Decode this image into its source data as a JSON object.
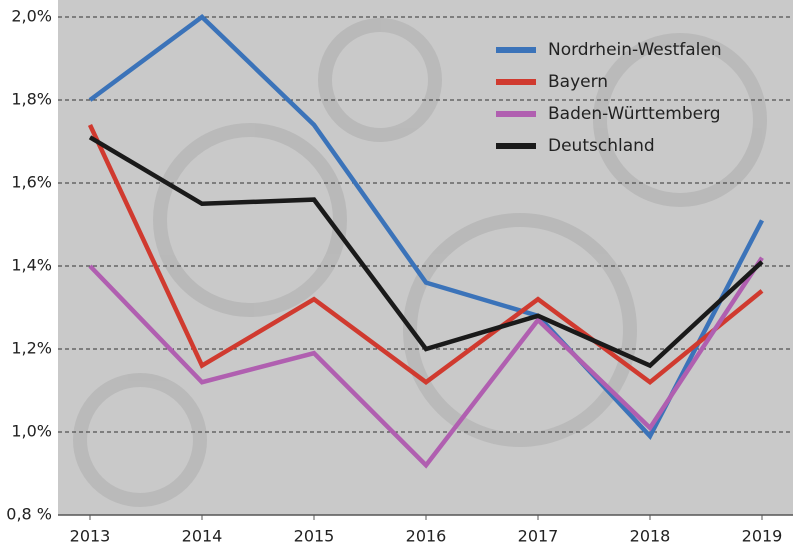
{
  "chart_data": {
    "type": "line",
    "categories": [
      "2013",
      "2014",
      "2015",
      "2016",
      "2017",
      "2018",
      "2019"
    ],
    "series": [
      {
        "name": "Nordrhein-Westfalen",
        "color": "#3b73b9",
        "values": [
          1.8,
          2.0,
          1.74,
          1.36,
          1.28,
          0.99,
          1.51
        ]
      },
      {
        "name": "Bayern",
        "color": "#d03a2f",
        "values": [
          1.74,
          1.16,
          1.32,
          1.12,
          1.32,
          1.12,
          1.34
        ]
      },
      {
        "name": "Baden-Württemberg",
        "color": "#b05fb0",
        "values": [
          1.4,
          1.12,
          1.19,
          0.92,
          1.27,
          1.01,
          1.42
        ]
      },
      {
        "name": "Deutschland",
        "color": "#1a1a1a",
        "values": [
          1.71,
          1.55,
          1.56,
          1.2,
          1.28,
          1.16,
          1.41
        ]
      }
    ],
    "ylim": [
      0.8,
      2.0
    ],
    "yticks": [
      {
        "value": 0.8,
        "label": "0,8 %"
      },
      {
        "value": 1.0,
        "label": "1,0%"
      },
      {
        "value": 1.2,
        "label": "1,2%"
      },
      {
        "value": 1.4,
        "label": "1,4%"
      },
      {
        "value": 1.6,
        "label": "1,6%"
      },
      {
        "value": 1.8,
        "label": "1,8%"
      },
      {
        "value": 2.0,
        "label": "2,0%"
      }
    ],
    "grid": true,
    "legend": "top-right"
  }
}
